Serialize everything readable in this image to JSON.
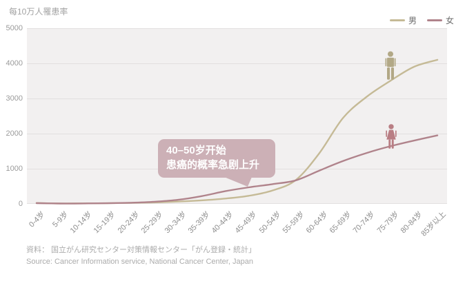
{
  "colors": {
    "plot_bg": "#f2f0f0",
    "gridline": "#e2dfdf",
    "bubble": "#ccb0b6",
    "male_icon": "#b2a886",
    "female_icon": "#b97e84"
  },
  "annotation": {
    "line1": "40–50岁开始",
    "line2": "患癌的概率急剧上升"
  },
  "footer": {
    "line1": "資料： 国立がん研究センター対策情報センター「がん登録・統計」",
    "line2": "Source: Cancer Information service, National Cancer Center, Japan"
  },
  "chart_data": {
    "type": "line",
    "title": "每10万人罹患率",
    "ylabel": "每10万人罹患率",
    "xlabel": "",
    "ylim": [
      0,
      5000
    ],
    "yticks": [
      0,
      1000,
      2000,
      3000,
      4000,
      5000
    ],
    "grid": true,
    "legend_position": "top-right",
    "categories": [
      "0-4岁",
      "5-9岁",
      "10-14岁",
      "15-19岁",
      "20-24岁",
      "25-29岁",
      "30-34岁",
      "35-39岁",
      "40-44岁",
      "45-49岁",
      "50-54岁",
      "55-59岁",
      "60-64岁",
      "65-69岁",
      "70-74岁",
      "75-79岁",
      "80-84岁",
      "85岁以上"
    ],
    "series": [
      {
        "key": "male",
        "name": "男",
        "color": "#c5ba96",
        "values": [
          25,
          12,
          14,
          18,
          28,
          42,
          65,
          100,
          150,
          230,
          380,
          680,
          1450,
          2450,
          3050,
          3500,
          3900,
          4100
        ]
      },
      {
        "key": "female",
        "name": "女",
        "color": "#b0838b",
        "values": [
          20,
          10,
          12,
          18,
          32,
          60,
          115,
          220,
          360,
          470,
          560,
          670,
          950,
          1220,
          1450,
          1640,
          1800,
          1950
        ]
      }
    ]
  }
}
